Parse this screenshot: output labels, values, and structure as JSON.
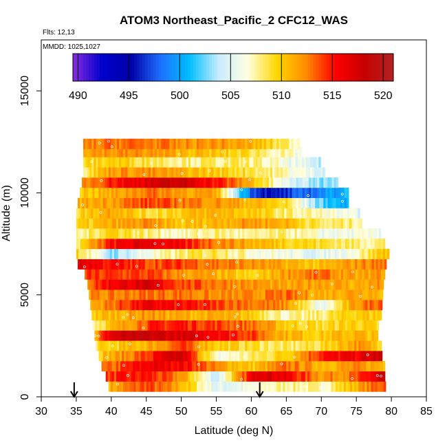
{
  "chart_data": {
    "type": "heatmap",
    "title": "ATOM3 Northeast_Pacific_2 CFC12_WAS",
    "annotations": [
      "Flts: 12,13",
      "MMDD: 1025,1027"
    ],
    "xlabel": "Latitude (deg N)",
    "ylabel": "Altitude (m)",
    "xlim": [
      30,
      85
    ],
    "ylim": [
      0,
      17500
    ],
    "x_ticks": [
      "30",
      "35",
      "40",
      "45",
      "50",
      "55",
      "60",
      "65",
      "70",
      "75",
      "80",
      "85"
    ],
    "y_ticks": [
      "0",
      "5000",
      "10000",
      "15000"
    ],
    "x_tick_values": [
      30,
      35,
      40,
      45,
      50,
      55,
      60,
      65,
      70,
      75,
      80,
      85
    ],
    "y_tick_values": [
      0,
      5000,
      10000,
      15000
    ],
    "grid": false,
    "colorbar": {
      "range": [
        489.5,
        521
      ],
      "tick_labels": [
        "490",
        "495",
        "500",
        "505",
        "510",
        "515",
        "520"
      ],
      "tick_values": [
        490,
        495,
        500,
        505,
        510,
        515,
        520
      ],
      "colors": [
        "#8a2be2",
        "#0000cd",
        "#0000a8",
        "#1e6fff",
        "#00bfff",
        "#c8ecff",
        "#ffffe0",
        "#ffd700",
        "#ff8c00",
        "#ff0000",
        "#c80000",
        "#b22222"
      ]
    },
    "arrows_x": [
      34.7,
      61.2
    ],
    "layers": [
      {
        "alt": 500,
        "lat_range": [
          39.6,
          78.9
        ],
        "knots": [
          [
            39.6,
            511
          ],
          [
            45,
            514
          ],
          [
            50,
            511
          ],
          [
            55,
            505
          ],
          [
            60,
            506
          ],
          [
            65,
            508
          ],
          [
            70,
            507
          ],
          [
            75,
            511
          ],
          [
            78.9,
            514
          ]
        ]
      },
      {
        "alt": 1000,
        "lat_range": [
          39.2,
          79.0
        ],
        "knots": [
          [
            39.2,
            514
          ],
          [
            45,
            515
          ],
          [
            50,
            512
          ],
          [
            55,
            504
          ],
          [
            61,
            518
          ],
          [
            65,
            516
          ],
          [
            70,
            512
          ],
          [
            75,
            513
          ],
          [
            79,
            518
          ]
        ]
      },
      {
        "alt": 1500,
        "lat_range": [
          38.6,
          78.8
        ],
        "knots": [
          [
            38.6,
            512
          ],
          [
            45,
            516
          ],
          [
            50,
            516
          ],
          [
            55,
            512
          ],
          [
            60,
            510
          ],
          [
            65,
            513
          ],
          [
            70,
            511
          ],
          [
            75,
            512
          ],
          [
            78.8,
            511
          ]
        ]
      },
      {
        "alt": 2000,
        "lat_range": [
          38.2,
          78.6
        ],
        "knots": [
          [
            38.2,
            510
          ],
          [
            45,
            514
          ],
          [
            50,
            518
          ],
          [
            55,
            506
          ],
          [
            60,
            508
          ],
          [
            65,
            510
          ],
          [
            70,
            515
          ],
          [
            75,
            516
          ],
          [
            78.6,
            518
          ]
        ]
      },
      {
        "alt": 2500,
        "lat_range": [
          37.8,
          78.4
        ],
        "knots": [
          [
            37.8,
            509
          ],
          [
            45,
            511
          ],
          [
            50,
            514
          ],
          [
            55,
            510
          ],
          [
            60,
            509
          ],
          [
            65,
            508
          ],
          [
            70,
            509
          ],
          [
            75,
            512
          ],
          [
            78.4,
            510
          ]
        ]
      },
      {
        "alt": 3000,
        "lat_range": [
          37.6,
          78.0
        ],
        "knots": [
          [
            37.6,
            511
          ],
          [
            40,
            517
          ],
          [
            45,
            518
          ],
          [
            50,
            517
          ],
          [
            55,
            516
          ],
          [
            60,
            514
          ],
          [
            65,
            511
          ],
          [
            70,
            510
          ],
          [
            75,
            511
          ],
          [
            78,
            510
          ]
        ]
      },
      {
        "alt": 3500,
        "lat_range": [
          37.4,
          78.0
        ],
        "knots": [
          [
            37.4,
            508
          ],
          [
            45,
            514
          ],
          [
            50,
            515
          ],
          [
            55,
            514
          ],
          [
            60,
            513
          ],
          [
            65,
            510
          ],
          [
            70,
            509
          ],
          [
            75,
            510
          ],
          [
            78,
            509
          ]
        ]
      },
      {
        "alt": 4000,
        "lat_range": [
          37.2,
          78.3
        ],
        "knots": [
          [
            37.2,
            510
          ],
          [
            45,
            512
          ],
          [
            50,
            511
          ],
          [
            55,
            511
          ],
          [
            60,
            510
          ],
          [
            65,
            507
          ],
          [
            70,
            508
          ],
          [
            75,
            510
          ],
          [
            78.3,
            510
          ]
        ]
      },
      {
        "alt": 4500,
        "lat_range": [
          37.0,
          78.5
        ],
        "knots": [
          [
            37,
            511
          ],
          [
            45,
            516
          ],
          [
            50,
            515
          ],
          [
            55,
            514
          ],
          [
            60,
            513
          ],
          [
            65,
            512
          ],
          [
            70,
            505
          ],
          [
            75,
            512
          ],
          [
            78.5,
            514
          ]
        ]
      },
      {
        "alt": 5000,
        "lat_range": [
          36.8,
          78.6
        ],
        "knots": [
          [
            36.8,
            512
          ],
          [
            45,
            513
          ],
          [
            50,
            513
          ],
          [
            55,
            512
          ],
          [
            60,
            512
          ],
          [
            65,
            513
          ],
          [
            70,
            511
          ],
          [
            75,
            512
          ],
          [
            78.6,
            511
          ]
        ]
      },
      {
        "alt": 5500,
        "lat_range": [
          36.6,
          78.8
        ],
        "knots": [
          [
            36.6,
            513
          ],
          [
            40,
            516
          ],
          [
            45,
            517
          ],
          [
            50,
            514
          ],
          [
            55,
            513
          ],
          [
            60,
            512
          ],
          [
            65,
            511
          ],
          [
            70,
            512
          ],
          [
            75,
            511
          ],
          [
            78.8,
            512
          ]
        ]
      },
      {
        "alt": 6000,
        "lat_range": [
          36.2,
          79.0
        ],
        "knots": [
          [
            36.2,
            514
          ],
          [
            45,
            514
          ],
          [
            50,
            512
          ],
          [
            55,
            511
          ],
          [
            60,
            509
          ],
          [
            65,
            512
          ],
          [
            70,
            513
          ],
          [
            75,
            511
          ],
          [
            79,
            512
          ]
        ]
      },
      {
        "alt": 6500,
        "lat_range": [
          35.2,
          79.2
        ],
        "knots": [
          [
            35.2,
            517
          ],
          [
            40,
            515
          ],
          [
            45,
            514
          ],
          [
            50,
            514
          ],
          [
            55,
            513
          ],
          [
            60,
            512
          ],
          [
            65,
            511
          ],
          [
            70,
            510
          ],
          [
            75,
            512
          ],
          [
            79.2,
            513
          ]
        ]
      },
      {
        "alt": 7000,
        "lat_range": [
          35.0,
          79.5
        ],
        "knots": [
          [
            35,
            510
          ],
          [
            40,
            503
          ],
          [
            45,
            506
          ],
          [
            50,
            508
          ],
          [
            55,
            509
          ],
          [
            60,
            507
          ],
          [
            65,
            506
          ],
          [
            70,
            505
          ],
          [
            75,
            507
          ],
          [
            79.5,
            511
          ]
        ]
      },
      {
        "alt": 7500,
        "lat_range": [
          35.0,
          79.0
        ],
        "knots": [
          [
            35,
            508
          ],
          [
            40,
            515
          ],
          [
            45,
            517
          ],
          [
            50,
            515
          ],
          [
            55,
            513
          ],
          [
            60,
            511
          ],
          [
            65,
            510
          ],
          [
            70,
            509
          ],
          [
            75,
            508
          ],
          [
            79,
            508
          ]
        ]
      },
      {
        "alt": 8000,
        "lat_range": [
          35.0,
          78.2
        ],
        "knots": [
          [
            35,
            507
          ],
          [
            40,
            510
          ],
          [
            45,
            508
          ],
          [
            50,
            507
          ],
          [
            55,
            508
          ],
          [
            60,
            507
          ],
          [
            65,
            508
          ],
          [
            70,
            506
          ],
          [
            75,
            506
          ],
          [
            78.2,
            506
          ]
        ]
      },
      {
        "alt": 8500,
        "lat_range": [
          35.0,
          75.6
        ],
        "knots": [
          [
            35,
            509
          ],
          [
            40,
            511
          ],
          [
            45,
            512
          ],
          [
            50,
            510
          ],
          [
            55,
            511
          ],
          [
            60,
            512
          ],
          [
            65,
            511
          ],
          [
            70,
            508
          ],
          [
            75.6,
            508
          ]
        ]
      },
      {
        "alt": 9000,
        "lat_range": [
          35.0,
          75.4
        ],
        "knots": [
          [
            35,
            509
          ],
          [
            40,
            512
          ],
          [
            45,
            509
          ],
          [
            50,
            510
          ],
          [
            55,
            511
          ],
          [
            60,
            510
          ],
          [
            65,
            508
          ],
          [
            70,
            507
          ],
          [
            75.4,
            505
          ]
        ]
      },
      {
        "alt": 9500,
        "lat_range": [
          35.2,
          73.8
        ],
        "knots": [
          [
            35.2,
            511
          ],
          [
            40,
            512
          ],
          [
            45,
            514
          ],
          [
            50,
            513
          ],
          [
            55,
            512
          ],
          [
            60,
            511
          ],
          [
            65,
            509
          ],
          [
            70,
            502
          ],
          [
            73.8,
            500
          ]
        ]
      },
      {
        "alt": 10000,
        "lat_range": [
          35.5,
          73.8
        ],
        "knots": [
          [
            35.5,
            510
          ],
          [
            40,
            511
          ],
          [
            45,
            513
          ],
          [
            50,
            512
          ],
          [
            55,
            511
          ],
          [
            60,
            498
          ],
          [
            63,
            495
          ],
          [
            66,
            497
          ],
          [
            70,
            499
          ],
          [
            73.8,
            501
          ]
        ]
      },
      {
        "alt": 10500,
        "lat_range": [
          35.8,
          72.2
        ],
        "knots": [
          [
            35.8,
            512
          ],
          [
            40,
            515
          ],
          [
            45,
            517
          ],
          [
            50,
            518
          ],
          [
            55,
            515
          ],
          [
            60,
            511
          ],
          [
            65,
            505
          ],
          [
            70,
            503
          ],
          [
            72.2,
            504
          ]
        ]
      },
      {
        "alt": 11000,
        "lat_range": [
          36.0,
          70.2
        ],
        "knots": [
          [
            36,
            508
          ],
          [
            40,
            512
          ],
          [
            45,
            512
          ],
          [
            50,
            511
          ],
          [
            55,
            510
          ],
          [
            60,
            509
          ],
          [
            65,
            507
          ],
          [
            70.2,
            505
          ]
        ]
      },
      {
        "alt": 11500,
        "lat_range": [
          36.0,
          69.6
        ],
        "knots": [
          [
            36,
            509
          ],
          [
            40,
            510
          ],
          [
            45,
            509
          ],
          [
            50,
            508
          ],
          [
            55,
            508
          ],
          [
            60,
            508
          ],
          [
            65,
            506
          ],
          [
            69.6,
            504
          ]
        ]
      },
      {
        "alt": 12000,
        "lat_range": [
          36.0,
          67.0
        ],
        "knots": [
          [
            36,
            512
          ],
          [
            40,
            512
          ],
          [
            45,
            512
          ],
          [
            50,
            511
          ],
          [
            55,
            510
          ],
          [
            60,
            509
          ],
          [
            67,
            506
          ]
        ]
      },
      {
        "alt": 12400,
        "lat_range": [
          36.0,
          66.8
        ],
        "knots": [
          [
            36,
            512
          ],
          [
            40,
            513
          ],
          [
            45,
            513
          ],
          [
            50,
            512
          ],
          [
            55,
            512
          ],
          [
            60,
            511
          ],
          [
            66.8,
            507
          ]
        ]
      }
    ]
  }
}
